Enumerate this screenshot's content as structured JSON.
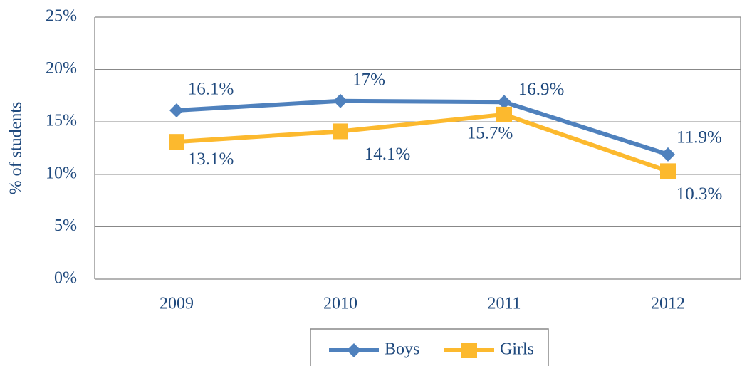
{
  "chart_data": {
    "type": "line",
    "y_axis_label": "% of students",
    "categories": [
      "2009",
      "2010",
      "2011",
      "2012"
    ],
    "series": [
      {
        "name": "Boys",
        "color": "#4f81bd",
        "marker": "diamond",
        "values": [
          16.1,
          17,
          16.9,
          11.9
        ],
        "value_labels": [
          "16.1%",
          "17%",
          "16.9%",
          "11.9%"
        ]
      },
      {
        "name": "Girls",
        "color": "#fcb92e",
        "marker": "square",
        "values": [
          13.1,
          14.1,
          15.7,
          10.3
        ],
        "value_labels": [
          "13.1%",
          "14.1%",
          "15.7%",
          "10.3%"
        ]
      }
    ],
    "ylim": [
      0,
      25
    ],
    "yticks": [
      {
        "value": 0,
        "label": "0%"
      },
      {
        "value": 5,
        "label": "5%"
      },
      {
        "value": 10,
        "label": "10%"
      },
      {
        "value": 15,
        "label": "15%"
      },
      {
        "value": 20,
        "label": "20%"
      },
      {
        "value": 25,
        "label": "25%"
      }
    ],
    "grid": true,
    "legend": "bottom"
  }
}
